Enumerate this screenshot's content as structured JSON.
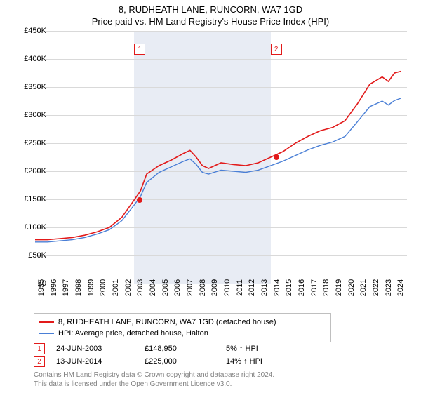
{
  "title": "8, RUDHEATH LANE, RUNCORN, WA7 1GD",
  "subtitle": "Price paid vs. HM Land Registry's House Price Index (HPI)",
  "chart": {
    "type": "line",
    "background_color": "#ffffff",
    "grid_color": "#d9d9d9",
    "shaded_band_color": "#e8ecf4",
    "ylim": [
      0,
      450000
    ],
    "ytick_step": 50000,
    "y_prefix": "£",
    "y_suffix": "K",
    "y_ticks": [
      "£0",
      "£50K",
      "£100K",
      "£150K",
      "£200K",
      "£250K",
      "£300K",
      "£350K",
      "£400K",
      "£450K"
    ],
    "x_years": [
      "1995",
      "1996",
      "1997",
      "1998",
      "1999",
      "2000",
      "2001",
      "2002",
      "2003",
      "2004",
      "2005",
      "2006",
      "2007",
      "2008",
      "2009",
      "2010",
      "2011",
      "2012",
      "2013",
      "2014",
      "2015",
      "2016",
      "2017",
      "2018",
      "2019",
      "2020",
      "2021",
      "2022",
      "2023",
      "2024"
    ],
    "shaded_band": {
      "from_year": 2003,
      "to_year": 2014
    },
    "series": [
      {
        "name": "8, RUDHEATH LANE, RUNCORN, WA7 1GD (detached house)",
        "color": "#e21a1a",
        "line_width": 1.6,
        "points": [
          [
            1995,
            78000
          ],
          [
            1996,
            78000
          ],
          [
            1997,
            80000
          ],
          [
            1998,
            82000
          ],
          [
            1999,
            86000
          ],
          [
            2000,
            92000
          ],
          [
            2001,
            100000
          ],
          [
            2002,
            118000
          ],
          [
            2003,
            148950
          ],
          [
            2003.5,
            165000
          ],
          [
            2004,
            195000
          ],
          [
            2005,
            210000
          ],
          [
            2006,
            220000
          ],
          [
            2007,
            232000
          ],
          [
            2007.5,
            237000
          ],
          [
            2008,
            225000
          ],
          [
            2008.5,
            210000
          ],
          [
            2009,
            205000
          ],
          [
            2010,
            215000
          ],
          [
            2011,
            212000
          ],
          [
            2012,
            210000
          ],
          [
            2013,
            215000
          ],
          [
            2014,
            225000
          ],
          [
            2015,
            235000
          ],
          [
            2016,
            250000
          ],
          [
            2017,
            262000
          ],
          [
            2018,
            272000
          ],
          [
            2019,
            278000
          ],
          [
            2020,
            290000
          ],
          [
            2021,
            320000
          ],
          [
            2022,
            355000
          ],
          [
            2023,
            368000
          ],
          [
            2023.5,
            360000
          ],
          [
            2024,
            375000
          ],
          [
            2024.5,
            378000
          ]
        ]
      },
      {
        "name": "HPI: Average price, detached house, Halton",
        "color": "#4a7fd6",
        "line_width": 1.4,
        "points": [
          [
            1995,
            74000
          ],
          [
            1996,
            74000
          ],
          [
            1997,
            76000
          ],
          [
            1998,
            78000
          ],
          [
            1999,
            82000
          ],
          [
            2000,
            88000
          ],
          [
            2001,
            96000
          ],
          [
            2002,
            112000
          ],
          [
            2003,
            140000
          ],
          [
            2003.5,
            155000
          ],
          [
            2004,
            180000
          ],
          [
            2005,
            198000
          ],
          [
            2006,
            208000
          ],
          [
            2007,
            218000
          ],
          [
            2007.5,
            222000
          ],
          [
            2008,
            212000
          ],
          [
            2008.5,
            198000
          ],
          [
            2009,
            195000
          ],
          [
            2010,
            202000
          ],
          [
            2011,
            200000
          ],
          [
            2012,
            198000
          ],
          [
            2013,
            202000
          ],
          [
            2014,
            210000
          ],
          [
            2015,
            218000
          ],
          [
            2016,
            228000
          ],
          [
            2017,
            238000
          ],
          [
            2018,
            246000
          ],
          [
            2019,
            252000
          ],
          [
            2020,
            262000
          ],
          [
            2021,
            288000
          ],
          [
            2022,
            315000
          ],
          [
            2023,
            325000
          ],
          [
            2023.5,
            318000
          ],
          [
            2024,
            326000
          ],
          [
            2024.5,
            330000
          ]
        ]
      }
    ],
    "markers": [
      {
        "id": "1",
        "year": 2003.45,
        "value": 148950
      },
      {
        "id": "2",
        "year": 2014.45,
        "value": 225000
      }
    ]
  },
  "legend": [
    {
      "color": "#e21a1a",
      "label": "8, RUDHEATH LANE, RUNCORN, WA7 1GD (detached house)"
    },
    {
      "color": "#4a7fd6",
      "label": "HPI: Average price, detached house, Halton"
    }
  ],
  "marker_table": [
    {
      "id": "1",
      "date": "24-JUN-2003",
      "price": "£148,950",
      "pct": "5% ↑ HPI"
    },
    {
      "id": "2",
      "date": "13-JUN-2014",
      "price": "£225,000",
      "pct": "14% ↑ HPI"
    }
  ],
  "footer": {
    "line1": "Contains HM Land Registry data © Crown copyright and database right 2024.",
    "line2": "This data is licensed under the Open Government Licence v3.0."
  }
}
